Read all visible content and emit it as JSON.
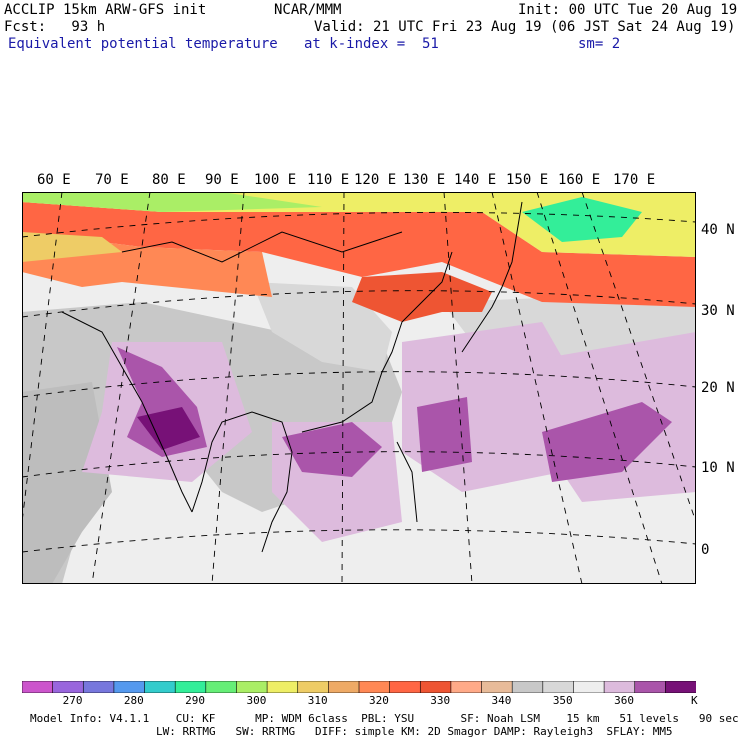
{
  "header": {
    "line1_left": "ACCLIP 15km ARW-GFS init",
    "line1_center": "NCAR/MMM",
    "line1_right": "Init: 00 UTC Tue 20 Aug 19",
    "line2_left": "Fcst:   93 h",
    "line2_right": "Valid: 21 UTC Fri 23 Aug 19 (06 JST Sat 24 Aug 19)",
    "line3_left": "Equivalent potential temperature",
    "line3_center": "at k-index =  51",
    "line3_right": "sm= 2"
  },
  "map": {
    "lon_labels": [
      "60 E",
      "70 E",
      "80 E",
      "90 E",
      "100 E",
      "110 E",
      "120 E",
      "130 E",
      "140 E",
      "150 E",
      "160 E",
      "170 E"
    ],
    "lat_labels": [
      "40 N",
      "30 N",
      "20 N",
      "10 N",
      "0"
    ],
    "field": "Equivalent potential temperature",
    "units": "K"
  },
  "colorbar": {
    "colors": [
      "#cc55cc",
      "#9966dd",
      "#7777dd",
      "#5599ee",
      "#33cccc",
      "#33ee99",
      "#66ee77",
      "#aaee66",
      "#eeee66",
      "#eecc66",
      "#eeaa66",
      "#ff8855",
      "#ff6644",
      "#ee5533",
      "#ffaa88",
      "#e8bb99",
      "#c8c8c8",
      "#d8d8d8",
      "#eeeeee",
      "#ddbbdd",
      "#aa55aa",
      "#771177"
    ],
    "labels": [
      "270",
      "280",
      "290",
      "300",
      "310",
      "320",
      "330",
      "340",
      "350",
      "360"
    ],
    "unit": "K"
  },
  "footer": {
    "line1": "Model Info: V4.1.1    CU: KF      MP: WDM 6class  PBL: YSU       SF: Noah LSM    15 km   51 levels   90 sec",
    "line2": "LW: RRTMG   SW: RRTMG   DIFF: simple KM: 2D Smagor DAMP: Rayleigh3  SFLAY: MM5"
  }
}
